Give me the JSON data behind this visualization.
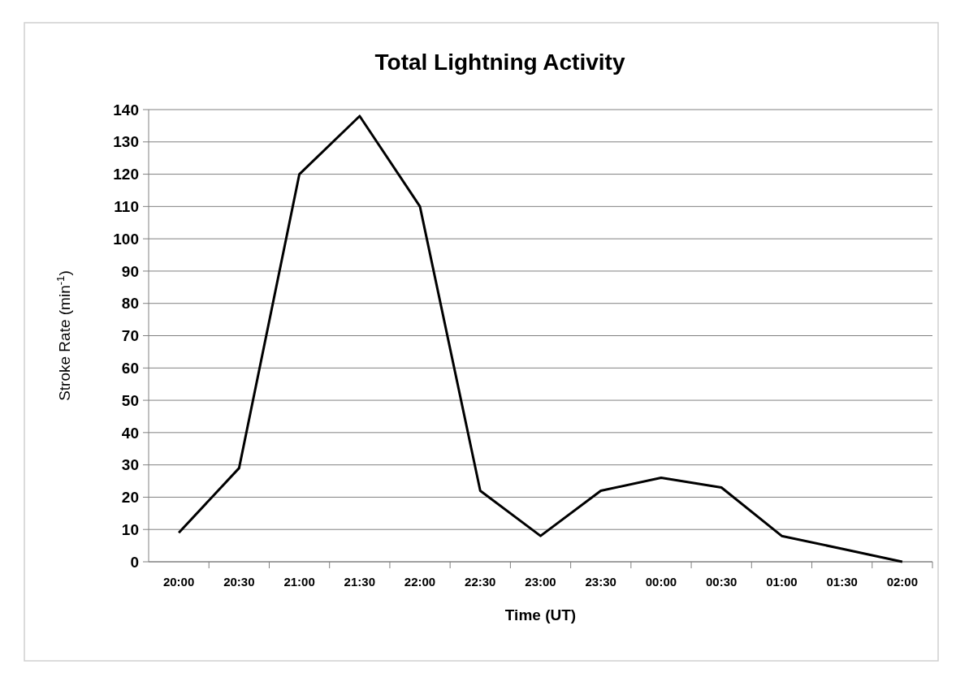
{
  "chart_data": {
    "type": "line",
    "title": "Total Lightning Activity",
    "xlabel": "Time (UT)",
    "ylabel": "Stroke Rate (min$^{-1}$)",
    "categories": [
      "20:00",
      "20:30",
      "21:00",
      "21:30",
      "22:00",
      "22:30",
      "23:00",
      "23:30",
      "00:00",
      "00:30",
      "01:00",
      "01:30",
      "02:00"
    ],
    "series": [
      {
        "color": "#000000",
        "values": [
          9,
          29,
          120,
          138,
          110,
          22,
          8,
          22,
          26,
          23,
          8,
          4,
          0
        ]
      }
    ],
    "ylim": [
      0,
      140
    ],
    "yticks": [
      0,
      10,
      20,
      30,
      40,
      50,
      60,
      70,
      80,
      90,
      100,
      110,
      120,
      130,
      140
    ],
    "grid": "y",
    "marker": "none",
    "line_style": "solid"
  }
}
